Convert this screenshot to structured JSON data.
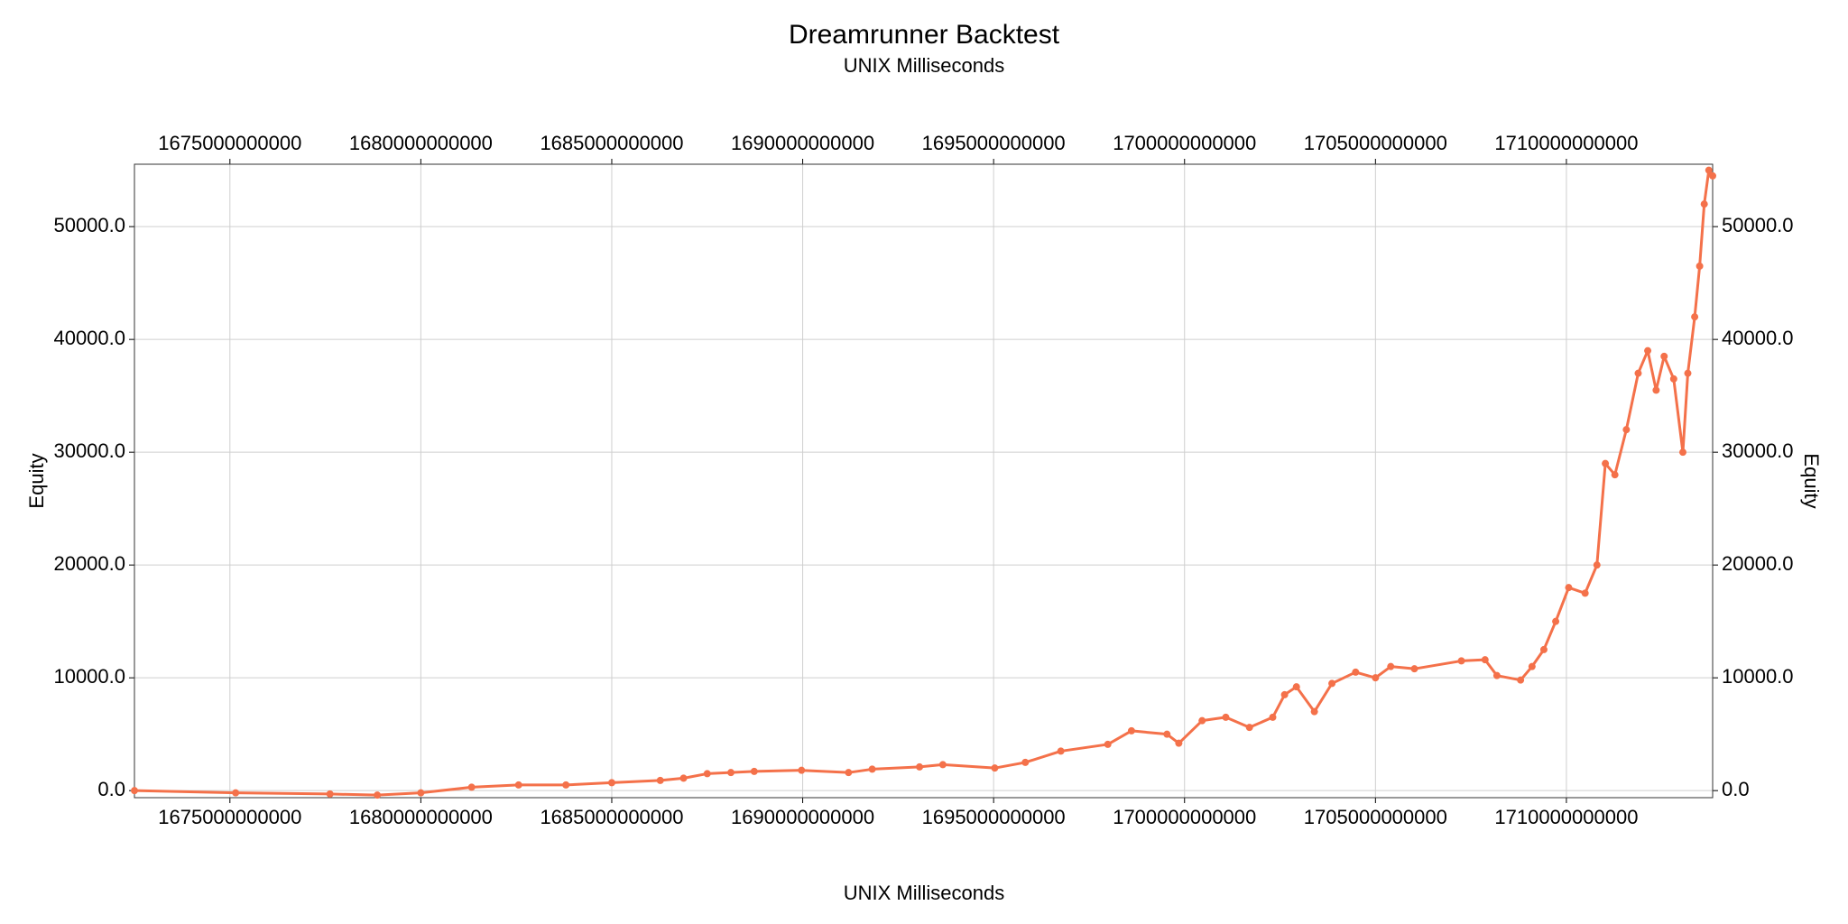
{
  "chart_data": {
    "type": "line",
    "title": "Dreamrunner Backtest",
    "subtitle": "UNIX Milliseconds",
    "x_label": "UNIX Milliseconds",
    "y_label": "Equity",
    "x": [
      1672500000000,
      1675150000000,
      1677620000000,
      1678860000000,
      1680000000000,
      1681330000000,
      1682560000000,
      1683800000000,
      1685000000000,
      1686270000000,
      1686880000000,
      1687500000000,
      1688120000000,
      1688730000000,
      1689970000000,
      1691200000000,
      1691820000000,
      1693060000000,
      1693670000000,
      1695030000000,
      1695830000000,
      1696760000000,
      1697990000000,
      1698610000000,
      1699540000000,
      1699850000000,
      1700460000000,
      1701080000000,
      1701700000000,
      1702310000000,
      1702620000000,
      1702930000000,
      1703400000000,
      1703860000000,
      1704480000000,
      1705000000000,
      1705400000000,
      1706020000000,
      1707250000000,
      1707870000000,
      1708180000000,
      1708800000000,
      1709100000000,
      1709410000000,
      1709720000000,
      1710060000000,
      1710490000000,
      1710800000000,
      1711020000000,
      1711270000000,
      1711570000000,
      1711880000000,
      1712130000000,
      1712350000000,
      1712560000000,
      1712810000000,
      1713050000000,
      1713180000000,
      1713360000000,
      1713490000000,
      1713610000000,
      1713730000000,
      1713830000000
    ],
    "series": [
      {
        "name": "Equity",
        "color": "#f4714a",
        "values": [
          0,
          -200,
          -300,
          -400,
          -200,
          300,
          500,
          500,
          700,
          900,
          1100,
          1500,
          1600,
          1700,
          1800,
          1600,
          1900,
          2100,
          2300,
          2000,
          2500,
          3500,
          4100,
          5300,
          5000,
          4200,
          6200,
          6500,
          5600,
          6500,
          8500,
          9200,
          7000,
          9500,
          10500,
          10000,
          11000,
          10800,
          11500,
          11600,
          10200,
          9800,
          11000,
          12500,
          15000,
          18000,
          17500,
          20000,
          29000,
          28000,
          32000,
          37000,
          39000,
          35500,
          38500,
          36500,
          30000,
          37000,
          42000,
          46500,
          52000,
          55000,
          54500
        ]
      }
    ],
    "xlim": [
      1672500000000,
      1713830000000
    ],
    "xticks": [
      1675000000000,
      1680000000000,
      1685000000000,
      1690000000000,
      1695000000000,
      1700000000000,
      1705000000000,
      1710000000000
    ],
    "ylim": [
      -626,
      55532
    ],
    "yticks": [
      {
        "value": 0,
        "label": "0.0"
      },
      {
        "value": 10000,
        "label": "10000.0"
      },
      {
        "value": 20000,
        "label": "20000.0"
      },
      {
        "value": 30000,
        "label": "30000.0"
      },
      {
        "value": 40000,
        "label": "40000.0"
      },
      {
        "value": 50000,
        "label": "50000.0"
      }
    ],
    "grid": true
  }
}
